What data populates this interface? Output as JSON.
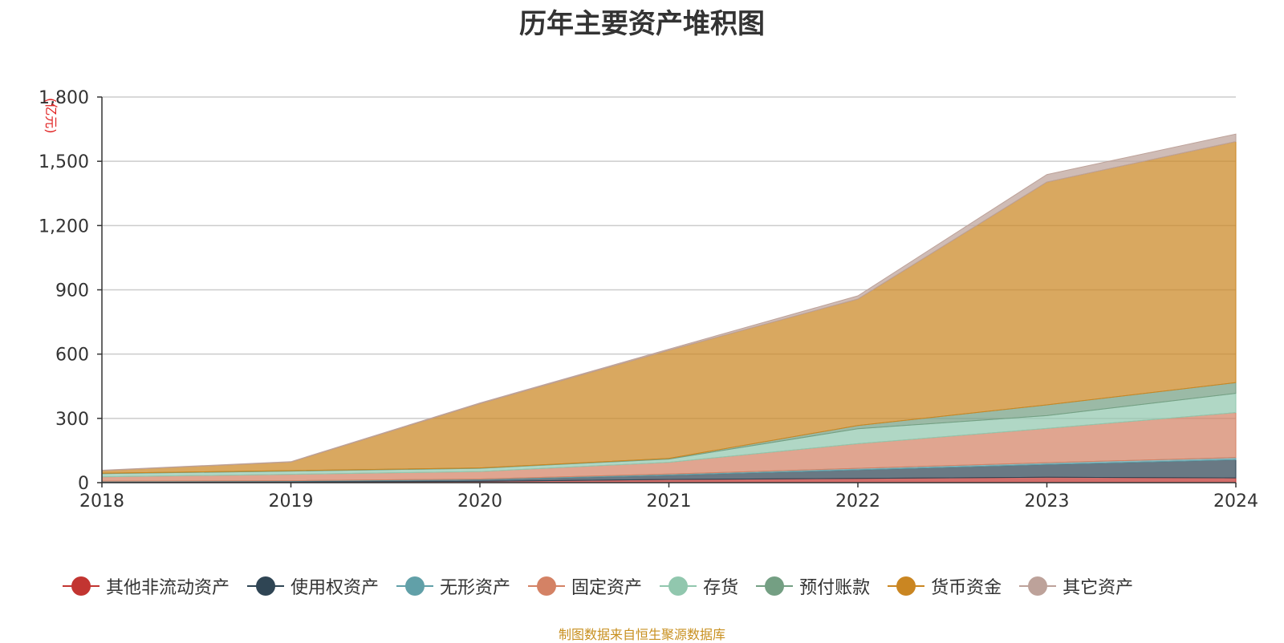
{
  "title": "历年主要资产堆积图",
  "source": "制图数据来自恒生聚源数据库",
  "colors": {
    "source": "#c89020",
    "unit": "#e02020",
    "grid": "#cccccc",
    "axis": "#333333"
  },
  "chart_data": {
    "type": "area",
    "stacked": true,
    "title": "历年主要资产堆积图",
    "ylabel": "(亿元)",
    "xlabel": "",
    "x": [
      "2018",
      "2019",
      "2020",
      "2021",
      "2022",
      "2023",
      "2024"
    ],
    "ylim": [
      0,
      1800
    ],
    "yticks": [
      0,
      300,
      600,
      900,
      1200,
      1500,
      1800
    ],
    "ytick_labels": [
      "0",
      "300",
      "600",
      "900",
      "1,200",
      "1,500",
      "1,800"
    ],
    "grid": true,
    "legend_position": "bottom",
    "series": [
      {
        "name": "其他非流动资产",
        "color": "#c23531",
        "values": [
          2,
          3,
          6,
          15,
          20,
          25,
          22
        ]
      },
      {
        "name": "使用权资产",
        "color": "#2f4554",
        "values": [
          3,
          4,
          8,
          20,
          40,
          60,
          85
        ]
      },
      {
        "name": "无形资产",
        "color": "#61a0a8",
        "values": [
          2,
          2,
          3,
          5,
          7,
          8,
          10
        ]
      },
      {
        "name": "固定资产",
        "color": "#d48265",
        "values": [
          20,
          30,
          35,
          55,
          115,
          160,
          210
        ]
      },
      {
        "name": "存货",
        "color": "#91c7ae",
        "values": [
          15,
          15,
          15,
          15,
          70,
          60,
          90
        ]
      },
      {
        "name": "预付账款",
        "color": "#749f83",
        "values": [
          2,
          2,
          2,
          3,
          15,
          50,
          50
        ]
      },
      {
        "name": "货币资金",
        "color": "#ca8622",
        "values": [
          12,
          40,
          300,
          505,
          590,
          1040,
          1125
        ]
      },
      {
        "name": "其它资产",
        "color": "#bda29a",
        "values": [
          2,
          2,
          3,
          5,
          15,
          35,
          35
        ]
      }
    ]
  }
}
